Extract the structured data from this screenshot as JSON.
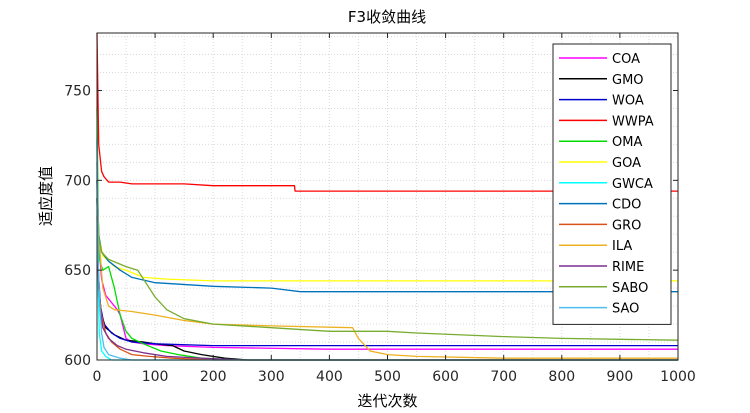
{
  "chart_data": {
    "type": "line",
    "title": "F3收敛曲线",
    "xlabel": "迭代次数",
    "ylabel": "适应度值",
    "xlim": [
      0,
      1000
    ],
    "ylim": [
      600,
      782
    ],
    "xticks": [
      0,
      100,
      200,
      300,
      400,
      500,
      600,
      700,
      800,
      900,
      1000
    ],
    "yticks": [
      600,
      650,
      700,
      750
    ],
    "grid": "dotted major + minor",
    "legend_position": "top-right",
    "series": [
      {
        "name": "COA",
        "color": "#ff00ff",
        "points": [
          [
            0,
            710
          ],
          [
            3,
            665
          ],
          [
            8,
            645
          ],
          [
            15,
            636
          ],
          [
            25,
            632
          ],
          [
            35,
            628
          ],
          [
            40,
            625
          ],
          [
            50,
            612
          ],
          [
            60,
            610
          ],
          [
            80,
            609
          ],
          [
            120,
            608
          ],
          [
            200,
            607
          ],
          [
            400,
            606
          ],
          [
            1000,
            606
          ]
        ]
      },
      {
        "name": "GMO",
        "color": "#000000",
        "points": [
          [
            0,
            690
          ],
          [
            3,
            640
          ],
          [
            8,
            625
          ],
          [
            15,
            618
          ],
          [
            30,
            614
          ],
          [
            50,
            611
          ],
          [
            80,
            610
          ],
          [
            100,
            609
          ],
          [
            130,
            608
          ],
          [
            150,
            605
          ],
          [
            180,
            603
          ],
          [
            220,
            601
          ],
          [
            260,
            600
          ],
          [
            1000,
            600
          ]
        ]
      },
      {
        "name": "WOA",
        "color": "#0000cc",
        "points": [
          [
            0,
            700
          ],
          [
            2,
            650
          ],
          [
            6,
            630
          ],
          [
            12,
            620
          ],
          [
            25,
            615
          ],
          [
            40,
            612
          ],
          [
            60,
            610
          ],
          [
            100,
            609
          ],
          [
            200,
            608
          ],
          [
            400,
            608
          ],
          [
            600,
            608
          ],
          [
            1000,
            608
          ]
        ]
      },
      {
        "name": "WWPA",
        "color": "#ff0000",
        "points": [
          [
            0,
            782
          ],
          [
            3,
            720
          ],
          [
            8,
            705
          ],
          [
            12,
            702
          ],
          [
            20,
            699
          ],
          [
            40,
            699
          ],
          [
            60,
            698
          ],
          [
            150,
            698
          ],
          [
            200,
            697
          ],
          [
            340,
            697
          ],
          [
            341,
            694
          ],
          [
            500,
            694
          ],
          [
            1000,
            694
          ]
        ]
      },
      {
        "name": "OMA",
        "color": "#00dd00",
        "points": [
          [
            0,
            740
          ],
          [
            2,
            680
          ],
          [
            5,
            655
          ],
          [
            10,
            650
          ],
          [
            20,
            652
          ],
          [
            30,
            640
          ],
          [
            40,
            625
          ],
          [
            50,
            616
          ],
          [
            60,
            612
          ],
          [
            80,
            609
          ],
          [
            110,
            605
          ],
          [
            140,
            603
          ],
          [
            180,
            601
          ],
          [
            250,
            600
          ],
          [
            1000,
            600
          ]
        ]
      },
      {
        "name": "GOA",
        "color": "#ffff00",
        "points": [
          [
            0,
            690
          ],
          [
            3,
            670
          ],
          [
            10,
            658
          ],
          [
            30,
            652
          ],
          [
            50,
            650
          ],
          [
            80,
            646
          ],
          [
            120,
            645
          ],
          [
            200,
            644
          ],
          [
            300,
            644
          ],
          [
            500,
            644
          ],
          [
            1000,
            644
          ]
        ]
      },
      {
        "name": "GWCA",
        "color": "#00ffff",
        "points": [
          [
            0,
            722
          ],
          [
            2,
            640
          ],
          [
            4,
            615
          ],
          [
            8,
            605
          ],
          [
            15,
            602
          ],
          [
            25,
            600
          ],
          [
            1000,
            600
          ]
        ]
      },
      {
        "name": "CDO",
        "color": "#0072bd",
        "points": [
          [
            0,
            700
          ],
          [
            3,
            670
          ],
          [
            8,
            660
          ],
          [
            20,
            655
          ],
          [
            40,
            650
          ],
          [
            60,
            646
          ],
          [
            100,
            643
          ],
          [
            200,
            641
          ],
          [
            300,
            640
          ],
          [
            350,
            638
          ],
          [
            500,
            638
          ],
          [
            1000,
            638
          ]
        ]
      },
      {
        "name": "GRO",
        "color": "#d95319",
        "points": [
          [
            0,
            680
          ],
          [
            3,
            640
          ],
          [
            8,
            625
          ],
          [
            15,
            615
          ],
          [
            25,
            610
          ],
          [
            40,
            606
          ],
          [
            60,
            603
          ],
          [
            90,
            602
          ],
          [
            130,
            601
          ],
          [
            200,
            600
          ],
          [
            1000,
            600
          ]
        ]
      },
      {
        "name": "ILA",
        "color": "#edb120",
        "points": [
          [
            0,
            700
          ],
          [
            3,
            670
          ],
          [
            10,
            640
          ],
          [
            20,
            630
          ],
          [
            30,
            628
          ],
          [
            60,
            627
          ],
          [
            100,
            625
          ],
          [
            150,
            622
          ],
          [
            200,
            620
          ],
          [
            300,
            619
          ],
          [
            440,
            618
          ],
          [
            450,
            612
          ],
          [
            470,
            605
          ],
          [
            500,
            603
          ],
          [
            550,
            602
          ],
          [
            700,
            601
          ],
          [
            1000,
            601
          ]
        ]
      },
      {
        "name": "RIME",
        "color": "#7e2f8e",
        "points": [
          [
            0,
            690
          ],
          [
            2,
            650
          ],
          [
            5,
            630
          ],
          [
            10,
            618
          ],
          [
            20,
            612
          ],
          [
            35,
            608
          ],
          [
            50,
            606
          ],
          [
            80,
            604
          ],
          [
            120,
            602
          ],
          [
            180,
            601
          ],
          [
            250,
            600
          ],
          [
            1000,
            600
          ]
        ]
      },
      {
        "name": "SABO",
        "color": "#77ac30",
        "points": [
          [
            0,
            700
          ],
          [
            3,
            668
          ],
          [
            8,
            660
          ],
          [
            20,
            656
          ],
          [
            50,
            652
          ],
          [
            70,
            650
          ],
          [
            100,
            635
          ],
          [
            120,
            628
          ],
          [
            150,
            623
          ],
          [
            200,
            620
          ],
          [
            300,
            618
          ],
          [
            400,
            616
          ],
          [
            500,
            616
          ],
          [
            550,
            615
          ],
          [
            700,
            613
          ],
          [
            800,
            612
          ],
          [
            1000,
            611
          ]
        ]
      },
      {
        "name": "SAO",
        "color": "#4dbeee",
        "points": [
          [
            0,
            723
          ],
          [
            2,
            655
          ],
          [
            5,
            630
          ],
          [
            8,
            615
          ],
          [
            12,
            607
          ],
          [
            20,
            603
          ],
          [
            40,
            601
          ],
          [
            60,
            600
          ],
          [
            1000,
            600
          ]
        ]
      }
    ]
  }
}
